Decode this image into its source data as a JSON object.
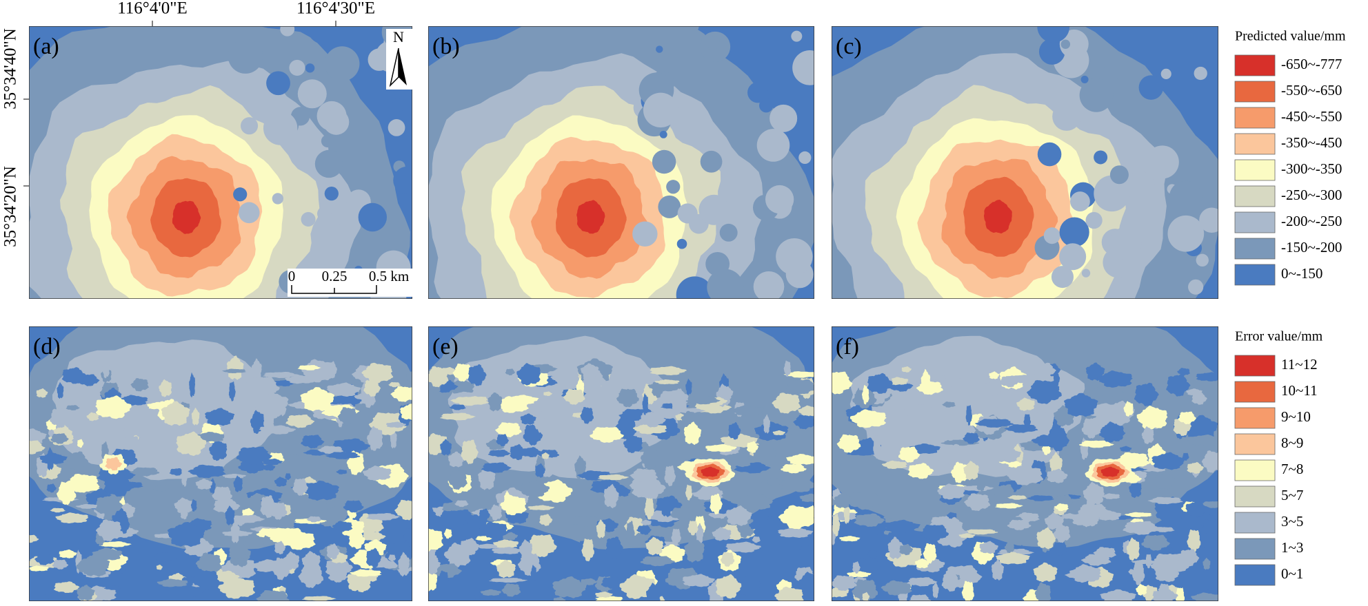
{
  "axes": {
    "x_labels": [
      "116°4'0\"E",
      "116°4'30\"E"
    ],
    "y_labels": [
      "35°34'40\"N",
      "35°34'20\"N"
    ]
  },
  "panels": {
    "predicted": [
      "(a)",
      "(b)",
      "(c)"
    ],
    "error": [
      "(d)",
      "(e)",
      "(f)"
    ]
  },
  "north": "N",
  "scale_bar": [
    "0",
    "0.25",
    "0.5 km"
  ],
  "legends": [
    {
      "title": "Predicted value/mm",
      "items": [
        {
          "label": "-650~-777",
          "color": "#d7302a"
        },
        {
          "label": "-550~-650",
          "color": "#e8683f"
        },
        {
          "label": "-450~-550",
          "color": "#f69b6b"
        },
        {
          "label": "-350~-450",
          "color": "#fbc69c"
        },
        {
          "label": "-300~-350",
          "color": "#fbfbc3"
        },
        {
          "label": "-250~-300",
          "color": "#d7d9c2"
        },
        {
          "label": "-200~-250",
          "color": "#aab9cc"
        },
        {
          "label": "-150~-200",
          "color": "#7b98b9"
        },
        {
          "label": "0~-150",
          "color": "#4a7bc0"
        }
      ]
    },
    {
      "title": "Error value/mm",
      "items": [
        {
          "label": "11~12",
          "color": "#d7302a"
        },
        {
          "label": "10~11",
          "color": "#e8683f"
        },
        {
          "label": "9~10",
          "color": "#f69b6b"
        },
        {
          "label": "8~9",
          "color": "#fbc69c"
        },
        {
          "label": "7~8",
          "color": "#fbfbc3"
        },
        {
          "label": "5~7",
          "color": "#d7d9c2"
        },
        {
          "label": "3~5",
          "color": "#aab9cc"
        },
        {
          "label": "1~3",
          "color": "#7b98b9"
        },
        {
          "label": "0~1",
          "color": "#4a7bc0"
        }
      ]
    }
  ]
}
